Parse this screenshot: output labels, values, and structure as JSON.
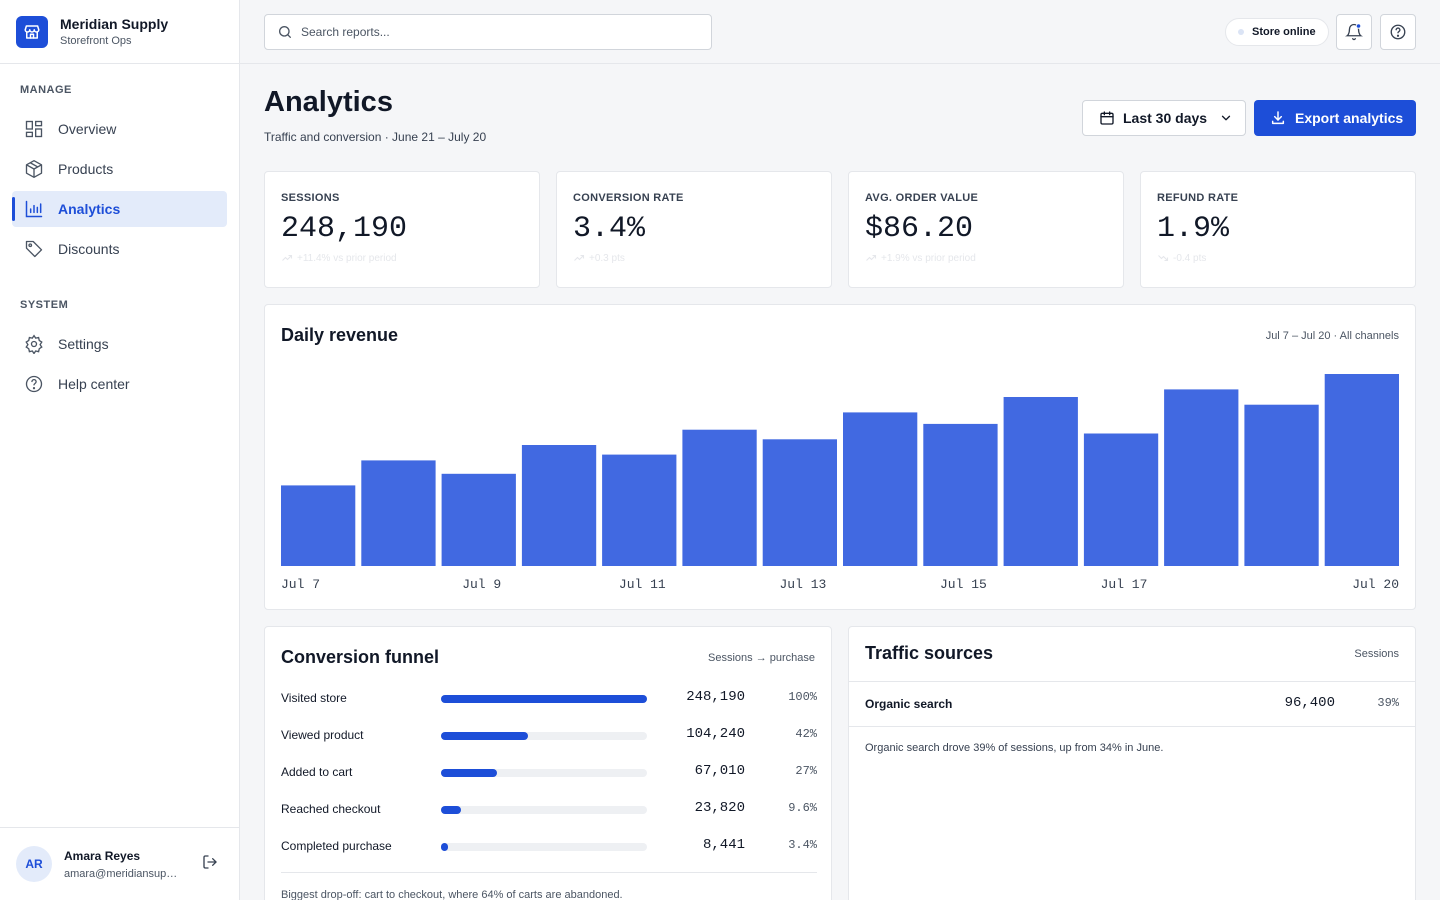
{
  "app": {
    "name": "Meridian Supply",
    "subtitle": "Storefront Ops"
  },
  "sidebar": {
    "sections": [
      {
        "label": "MANAGE",
        "items": [
          {
            "label": "Overview",
            "icon": "grid-icon"
          },
          {
            "label": "Products",
            "icon": "box-icon"
          },
          {
            "label": "Analytics",
            "icon": "bar-chart-icon",
            "active": true
          },
          {
            "label": "Discounts",
            "icon": "tag-icon"
          }
        ]
      },
      {
        "label": "SYSTEM",
        "items": [
          {
            "label": "Settings",
            "icon": "gear-icon"
          },
          {
            "label": "Help center",
            "icon": "help-circle-icon"
          }
        ]
      }
    ],
    "user": {
      "initials": "AR",
      "name": "Amara Reyes",
      "email": "amara@meridiansupply.com"
    }
  },
  "topbar": {
    "search_placeholder": "Search reports...",
    "store_status": "Store online",
    "has_notification": true
  },
  "header": {
    "title": "Analytics",
    "subtitle": "Traffic and conversion · June 21 – July 20",
    "date_range": "Last 30 days",
    "export_label": "Export analytics"
  },
  "kpis": [
    {
      "label": "SESSIONS",
      "value": "248,190",
      "delta": "+11.4% vs prior period",
      "trend": "up"
    },
    {
      "label": "CONVERSION RATE",
      "value": "3.4%",
      "delta": "+0.3 pts",
      "trend": "up"
    },
    {
      "label": "AVG. ORDER VALUE",
      "value": "$86.20",
      "delta": "+1.9% vs prior period",
      "trend": "up"
    },
    {
      "label": "REFUND RATE",
      "value": "1.9%",
      "delta": "-0.4 pts",
      "trend": "down"
    }
  ],
  "revenue": {
    "title": "Daily revenue",
    "meta": "Jul 7 – Jul 20 · All channels"
  },
  "chart_data": {
    "type": "bar",
    "categories": [
      "Jul 7",
      "Jul 8",
      "Jul 9",
      "Jul 10",
      "Jul 11",
      "Jul 12",
      "Jul 13",
      "Jul 14",
      "Jul 15",
      "Jul 16",
      "Jul 17",
      "Jul 18",
      "Jul 19",
      "Jul 20"
    ],
    "tick_labels": [
      "Jul 7",
      "Jul 9",
      "Jul 11",
      "Jul 13",
      "Jul 15",
      "Jul 17",
      "Jul 20"
    ],
    "values": [
      42,
      55,
      48,
      63,
      58,
      71,
      66,
      80,
      74,
      88,
      69,
      92,
      84,
      100
    ],
    "ylim": [
      0,
      100
    ],
    "color": "#4169e1",
    "grid": false,
    "title": "Daily revenue",
    "xlabel": "",
    "ylabel": ""
  },
  "funnel": {
    "title": "Conversion funnel",
    "meta": "Sessions → purchase",
    "steps": [
      {
        "label": "Visited store",
        "count": "248,190",
        "pct": "100%",
        "ratio": 1.0
      },
      {
        "label": "Viewed product",
        "count": "104,240",
        "pct": "42%",
        "ratio": 0.42
      },
      {
        "label": "Added to cart",
        "count": "67,010",
        "pct": "27%",
        "ratio": 0.27
      },
      {
        "label": "Reached checkout",
        "count": "23,820",
        "pct": "9.6%",
        "ratio": 0.096
      },
      {
        "label": "Completed purchase",
        "count": "8,441",
        "pct": "3.4%",
        "ratio": 0.034
      }
    ],
    "note": "Biggest drop-off: cart to checkout, where 64% of carts are abandoned."
  },
  "traffic": {
    "title": "Traffic sources",
    "meta": "Sessions",
    "rows": [
      {
        "name": "Organic search",
        "count": "96,400",
        "pct": "39%"
      }
    ],
    "note": "Organic search drove 39% of sessions, up from 34% in June."
  },
  "colors": {
    "accent": "#1d4ed8",
    "bar": "#4169e1",
    "active_bg": "#e3ebfa"
  }
}
